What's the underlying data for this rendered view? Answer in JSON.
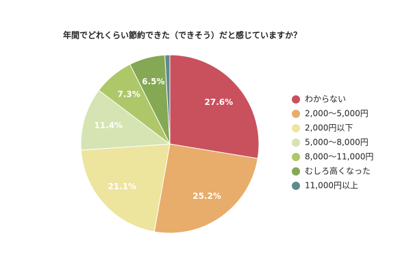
{
  "chart_data": {
    "type": "pie",
    "title": "年間でどれくらい節約できた（できそう）だと感じていますか？",
    "categories": [
      "わからない",
      "2,000〜5,000円",
      "2,000円以下",
      "5,000〜8,000円",
      "8,000〜11,000円",
      "むしろ高くなった",
      "11,000円以上"
    ],
    "values": [
      27.6,
      25.2,
      21.1,
      11.4,
      7.3,
      6.5,
      0.9
    ],
    "value_labels": [
      "27.6%",
      "25.2%",
      "21.1%",
      "11.4%",
      "7.3%",
      "6.5%",
      null
    ],
    "colors": [
      "#c9505d",
      "#e8ac6b",
      "#ede49e",
      "#d5e4b2",
      "#aec768",
      "#84a854",
      "#5f8a8c"
    ],
    "legend": "right"
  }
}
